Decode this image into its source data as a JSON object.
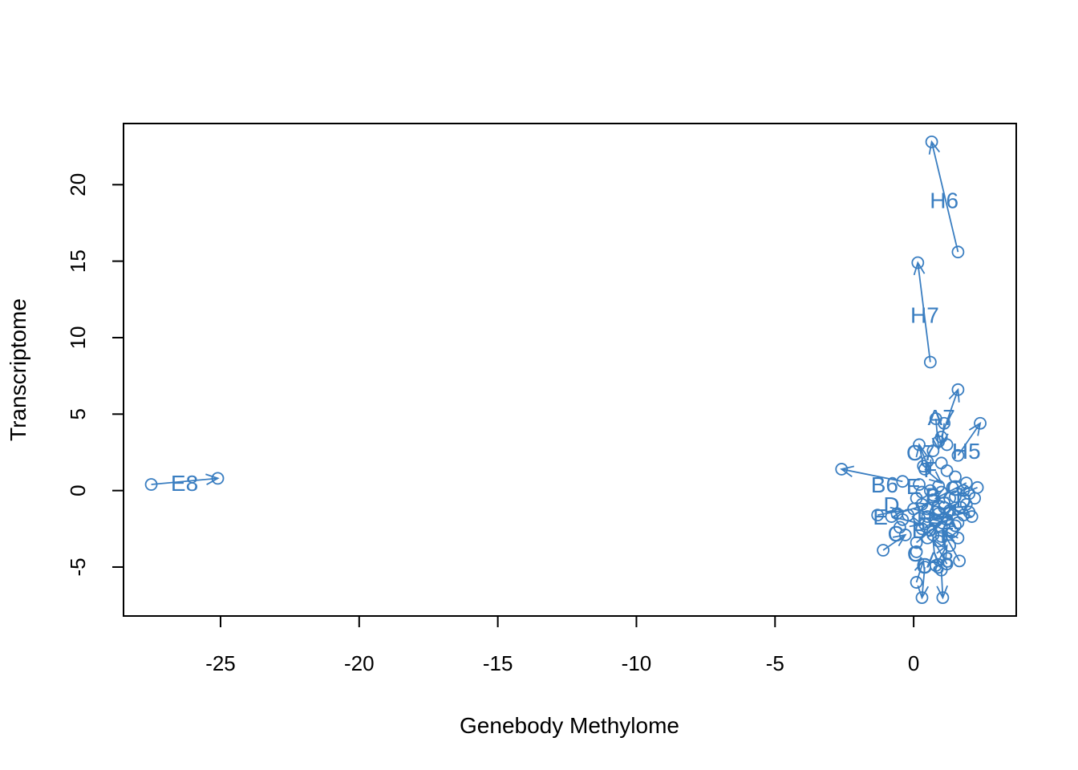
{
  "chart_data": {
    "type": "scatter",
    "title": "",
    "xlabel": "Genebody Methylome",
    "ylabel": "Transcriptome",
    "xlim": [
      -28.5,
      3.7
    ],
    "ylim": [
      -8.2,
      24.0
    ],
    "xticks": [
      -25,
      -20,
      -15,
      -10,
      -5,
      0
    ],
    "yticks": [
      -5,
      0,
      5,
      10,
      15,
      20
    ],
    "grid": false,
    "legend": "none",
    "color": "#3A7EC1",
    "pairs": [
      {
        "label": "E8",
        "from": [
          -27.5,
          0.4
        ],
        "to": [
          -25.1,
          0.8
        ],
        "label_at": [
          -26.3,
          0.5
        ]
      },
      {
        "label": "H6",
        "from": [
          1.6,
          15.6
        ],
        "to": [
          0.65,
          22.8
        ],
        "label_at": [
          1.1,
          19.0
        ]
      },
      {
        "label": "H7",
        "from": [
          0.6,
          8.4
        ],
        "to": [
          0.15,
          14.9
        ],
        "label_at": [
          0.4,
          11.5
        ]
      },
      {
        "label": "A7",
        "from": [
          1.0,
          3.5
        ],
        "to": [
          1.6,
          6.6
        ],
        "label_at": [
          1.0,
          4.8
        ]
      },
      {
        "label": "H5",
        "from": [
          1.6,
          2.3
        ],
        "to": [
          2.4,
          4.4
        ],
        "label_at": [
          1.9,
          2.6
        ]
      },
      {
        "label": "B6",
        "from": [
          -0.4,
          0.6
        ],
        "to": [
          -2.6,
          1.4
        ],
        "label_at": [
          -1.05,
          0.4
        ]
      },
      {
        "label": "C7",
        "from": [
          0.35,
          1.6
        ],
        "to": [
          0.2,
          3.0
        ],
        "label_at": [
          0.25,
          2.5
        ]
      },
      {
        "label": "A8",
        "from": [
          1.0,
          -5.2
        ],
        "to": [
          1.05,
          -7.0
        ],
        "label_at": [
          0.95,
          -4.5
        ]
      },
      {
        "label": "C8",
        "from": [
          0.4,
          -5.0
        ],
        "to": [
          0.3,
          -7.0
        ],
        "label_at": [
          0.6,
          -4.9
        ]
      }
    ],
    "cluster_points": [
      [
        0.1,
        -0.5
      ],
      [
        0.3,
        -0.9
      ],
      [
        0.5,
        -1.2
      ],
      [
        0.7,
        -0.6
      ],
      [
        0.9,
        -1.5
      ],
      [
        1.1,
        -0.8
      ],
      [
        1.3,
        -1.3
      ],
      [
        1.5,
        -0.4
      ],
      [
        1.7,
        -1.1
      ],
      [
        1.9,
        -0.9
      ],
      [
        0.2,
        -1.8
      ],
      [
        0.4,
        -2.2
      ],
      [
        0.6,
        -2.6
      ],
      [
        0.8,
        -2.0
      ],
      [
        1.0,
        -2.4
      ],
      [
        1.2,
        -1.9
      ],
      [
        1.4,
        -2.7
      ],
      [
        1.6,
        -2.1
      ],
      [
        1.8,
        -1.6
      ],
      [
        2.0,
        -1.4
      ],
      [
        0.0,
        -1.2
      ],
      [
        -0.2,
        -1.6
      ],
      [
        -0.4,
        -1.9
      ],
      [
        -0.6,
        -1.5
      ],
      [
        -0.8,
        -1.7
      ],
      [
        -1.3,
        -1.6
      ],
      [
        -1.1,
        -3.9
      ],
      [
        -0.3,
        -2.9
      ],
      [
        0.1,
        -3.4
      ],
      [
        0.5,
        -3.1
      ],
      [
        0.9,
        -3.3
      ],
      [
        1.3,
        -3.6
      ],
      [
        1.6,
        -3.1
      ],
      [
        1.65,
        -4.6
      ],
      [
        1.2,
        -4.8
      ],
      [
        0.1,
        -4.0
      ],
      [
        0.1,
        -6.0
      ],
      [
        0.8,
        -4.9
      ],
      [
        2.1,
        -1.7
      ],
      [
        2.2,
        -0.5
      ],
      [
        2.3,
        0.2
      ],
      [
        1.9,
        0.5
      ],
      [
        1.5,
        0.9
      ],
      [
        1.2,
        1.3
      ],
      [
        0.9,
        0.3
      ],
      [
        0.6,
        0.0
      ],
      [
        0.3,
        -0.1
      ],
      [
        0.8,
        4.7
      ],
      [
        1.1,
        4.4
      ],
      [
        0.9,
        3.2
      ],
      [
        1.2,
        3.0
      ],
      [
        0.7,
        2.6
      ],
      [
        0.5,
        1.9
      ],
      [
        1.0,
        1.8
      ],
      [
        0.4,
        1.4
      ],
      [
        1.4,
        0.2
      ],
      [
        1.8,
        0.0
      ],
      [
        2.0,
        -0.2
      ],
      [
        0.2,
        0.4
      ],
      [
        0.7,
        -0.3
      ],
      [
        1.0,
        -0.1
      ],
      [
        1.3,
        -0.5
      ],
      [
        0.5,
        -1.7
      ],
      [
        0.8,
        -1.4
      ],
      [
        1.1,
        -1.1
      ],
      [
        0.3,
        -2.5
      ],
      [
        0.7,
        -2.9
      ],
      [
        1.5,
        -2.3
      ],
      [
        1.0,
        -3.0
      ],
      [
        -0.5,
        -2.4
      ]
    ],
    "cluster_links": [
      [
        [
          -1.3,
          -1.6
        ],
        [
          -0.4,
          -1.3
        ]
      ],
      [
        [
          -1.1,
          -3.9
        ],
        [
          -0.3,
          -2.9
        ]
      ],
      [
        [
          0.1,
          -6.0
        ],
        [
          0.35,
          -4.6
        ]
      ],
      [
        [
          1.65,
          -4.6
        ],
        [
          1.1,
          -2.8
        ]
      ],
      [
        [
          2.1,
          -1.7
        ],
        [
          1.3,
          -1.1
        ]
      ],
      [
        [
          2.3,
          0.2
        ],
        [
          1.6,
          -0.3
        ]
      ],
      [
        [
          0.8,
          4.7
        ],
        [
          0.9,
          2.7
        ]
      ],
      [
        [
          1.1,
          4.4
        ],
        [
          1.0,
          3.0
        ]
      ],
      [
        [
          0.2,
          3.0
        ],
        [
          0.6,
          1.2
        ]
      ],
      [
        [
          0.4,
          1.4
        ],
        [
          1.0,
          0.5
        ]
      ],
      [
        [
          -0.6,
          -1.5
        ],
        [
          0.5,
          -0.9
        ]
      ],
      [
        [
          0.1,
          -3.4
        ],
        [
          0.9,
          -2.2
        ]
      ],
      [
        [
          1.6,
          -3.1
        ],
        [
          0.6,
          -2.1
        ]
      ],
      [
        [
          1.9,
          0.5
        ],
        [
          0.8,
          -0.5
        ]
      ],
      [
        [
          0.0,
          -1.2
        ],
        [
          1.4,
          -1.9
        ]
      ],
      [
        [
          0.5,
          -3.1
        ],
        [
          1.5,
          -0.9
        ]
      ],
      [
        [
          1.2,
          -4.8
        ],
        [
          0.7,
          -3.2
        ]
      ],
      [
        [
          0.8,
          -4.9
        ],
        [
          1.2,
          -3.6
        ]
      ],
      [
        [
          -0.8,
          -1.7
        ],
        [
          0.3,
          -2.2
        ]
      ],
      [
        [
          2.0,
          -1.4
        ],
        [
          0.7,
          -1.9
        ]
      ]
    ],
    "cluster_labels": [
      {
        "text": "D",
        "at": [
          -0.8,
          -0.9
        ]
      },
      {
        "text": "E",
        "at": [
          0.0,
          0.3
        ]
      },
      {
        "text": "E",
        "at": [
          -1.2,
          -1.7
        ]
      },
      {
        "text": "C",
        "at": [
          -0.65,
          -2.8
        ]
      },
      {
        "text": "C",
        "at": [
          0.05,
          -4.1
        ]
      },
      {
        "text": "F",
        "at": [
          0.6,
          1.4
        ]
      },
      {
        "text": "G",
        "at": [
          0.9,
          -1.1
        ]
      },
      {
        "text": "B",
        "at": [
          0.2,
          -2.6
        ]
      },
      {
        "text": "A",
        "at": [
          1.3,
          -2.0
        ]
      },
      {
        "text": "D",
        "at": [
          1.8,
          -0.6
        ]
      },
      {
        "text": "H",
        "at": [
          0.4,
          -1.8
        ]
      },
      {
        "text": "F",
        "at": [
          1.2,
          -2.9
        ]
      },
      {
        "text": "B",
        "at": [
          0.7,
          -0.3
        ]
      },
      {
        "text": "G",
        "at": [
          1.5,
          0.2
        ]
      }
    ]
  }
}
